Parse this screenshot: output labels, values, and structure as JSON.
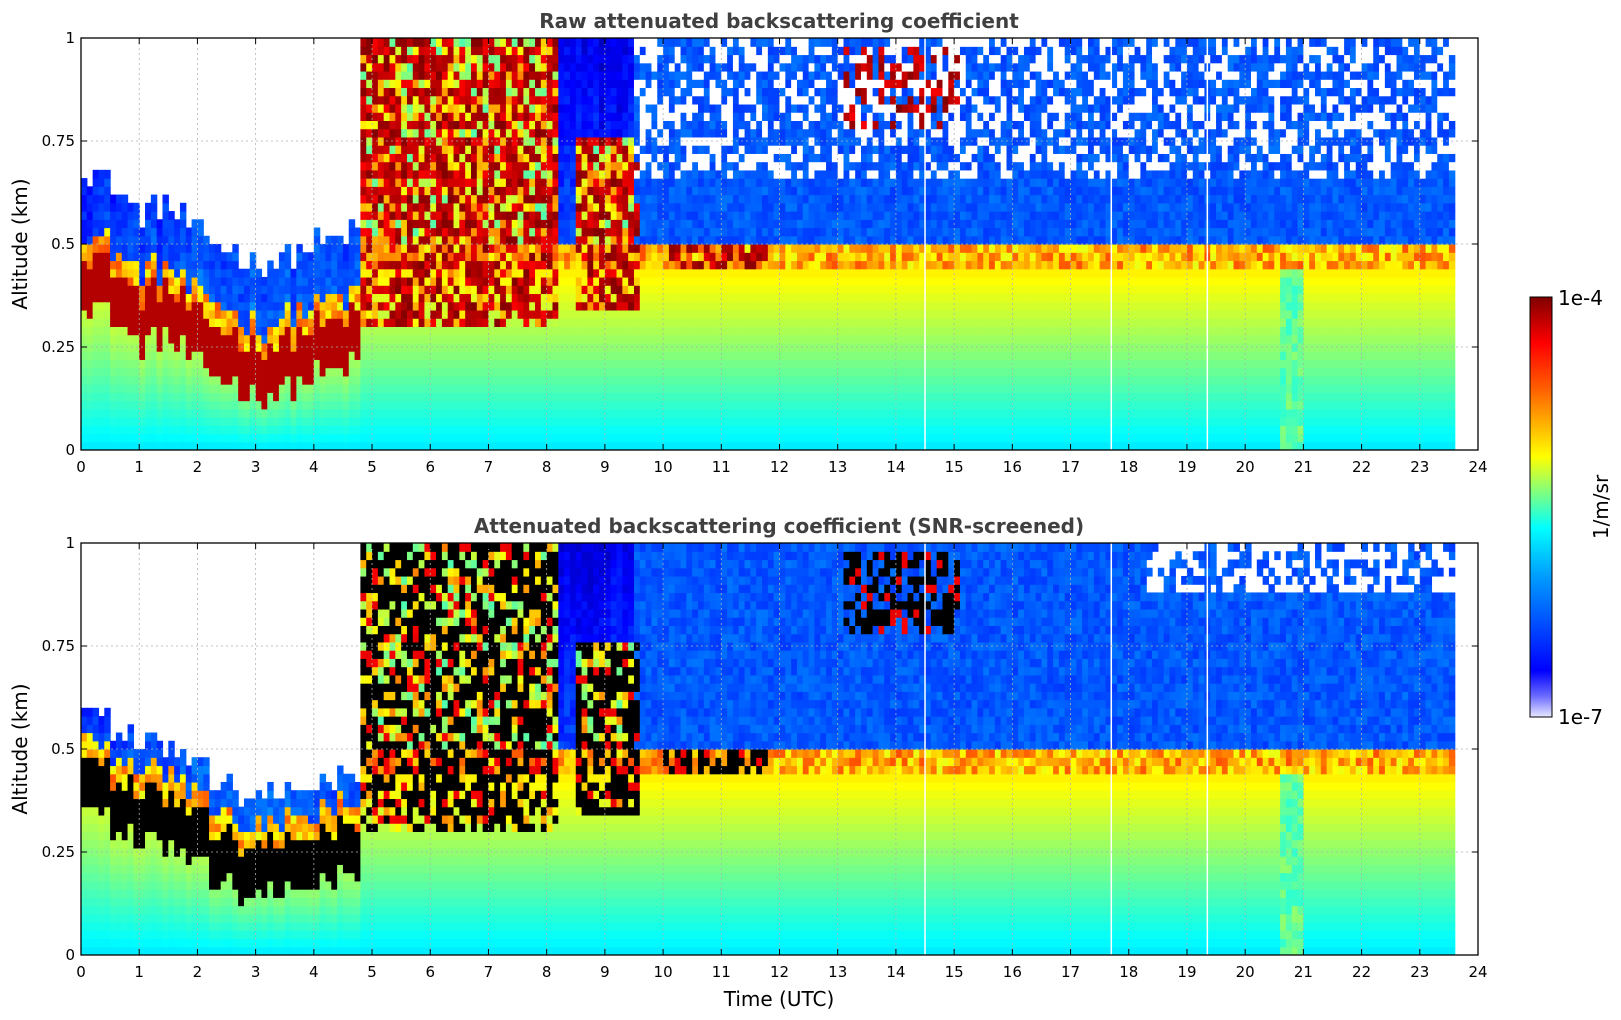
{
  "chart_data": [
    {
      "type": "heatmap",
      "title": "Raw attenuated backscattering coefficient",
      "xlabel": "",
      "ylabel": "Altitude (km)",
      "xlim": [
        0,
        24
      ],
      "ylim": [
        0,
        1
      ],
      "x_ticks": [
        "0",
        "1",
        "2",
        "3",
        "4",
        "5",
        "6",
        "7",
        "8",
        "9",
        "10",
        "11",
        "12",
        "13",
        "14",
        "15",
        "16",
        "17",
        "18",
        "19",
        "20",
        "21",
        "22",
        "23",
        "24"
      ],
      "y_ticks": [
        "0",
        "0.25",
        "0.5",
        "0.75",
        "1"
      ],
      "grid": true,
      "data_time_end": 23.6,
      "features": [
        {
          "kind": "boundary_layer",
          "t": [
            0.0,
            0.5,
            1.0,
            1.5,
            2.0,
            2.5,
            3.0,
            3.5,
            4.0,
            4.5,
            4.8
          ],
          "top_km": [
            0.5,
            0.45,
            0.38,
            0.4,
            0.32,
            0.3,
            0.25,
            0.27,
            0.3,
            0.32,
            0.33
          ]
        },
        {
          "kind": "cloud",
          "t_start": 4.8,
          "t_end": 8.2,
          "base_km": 0.3,
          "top_km": 1.0
        },
        {
          "kind": "cloud",
          "t_start": 8.5,
          "t_end": 9.6,
          "base_km": 0.35,
          "top_km": 0.75
        },
        {
          "kind": "cloud",
          "t_start": 10.0,
          "t_end": 11.8,
          "base_km": 0.45,
          "top_km": 0.5
        },
        {
          "kind": "cloud",
          "t_start": 13.1,
          "t_end": 15.1,
          "base_km": 0.78,
          "top_km": 0.97
        }
      ],
      "gaps_t": [
        14.5,
        17.7,
        19.35
      ]
    },
    {
      "type": "heatmap",
      "title": "Attenuated backscattering coefficient (SNR-screened)",
      "xlabel": "Time (UTC)",
      "ylabel": "Altitude (km)",
      "xlim": [
        0,
        24
      ],
      "ylim": [
        0,
        1
      ],
      "x_ticks": [
        "0",
        "1",
        "2",
        "3",
        "4",
        "5",
        "6",
        "7",
        "8",
        "9",
        "10",
        "11",
        "12",
        "13",
        "14",
        "15",
        "16",
        "17",
        "18",
        "19",
        "20",
        "21",
        "22",
        "23",
        "24"
      ],
      "y_ticks": [
        "0",
        "0.25",
        "0.5",
        "0.75",
        "1"
      ],
      "grid": true,
      "data_time_end": 23.6,
      "features": [
        {
          "kind": "boundary_layer",
          "t": [
            0.0,
            0.5,
            1.0,
            1.5,
            2.0,
            2.5,
            3.0,
            3.5,
            4.0,
            4.5,
            4.8
          ],
          "top_km": [
            0.5,
            0.45,
            0.38,
            0.4,
            0.32,
            0.3,
            0.25,
            0.27,
            0.3,
            0.32,
            0.33
          ]
        },
        {
          "kind": "cloud",
          "t_start": 4.8,
          "t_end": 8.2,
          "base_km": 0.3,
          "top_km": 1.0
        },
        {
          "kind": "cloud",
          "t_start": 8.5,
          "t_end": 9.6,
          "base_km": 0.35,
          "top_km": 0.75
        },
        {
          "kind": "cloud",
          "t_start": 10.0,
          "t_end": 11.8,
          "base_km": 0.45,
          "top_km": 0.5
        },
        {
          "kind": "cloud",
          "t_start": 13.1,
          "t_end": 15.1,
          "base_km": 0.78,
          "top_km": 0.97
        }
      ],
      "gaps_t": [
        14.5,
        17.7,
        19.35
      ]
    }
  ],
  "colorbar": {
    "label": "1/m/sr",
    "max_label": "1e-4",
    "min_label": "1e-7",
    "scale": "log",
    "range": [
      1e-07,
      0.0001
    ],
    "colormap": "jet",
    "saturated_color_screened": "#000000"
  }
}
